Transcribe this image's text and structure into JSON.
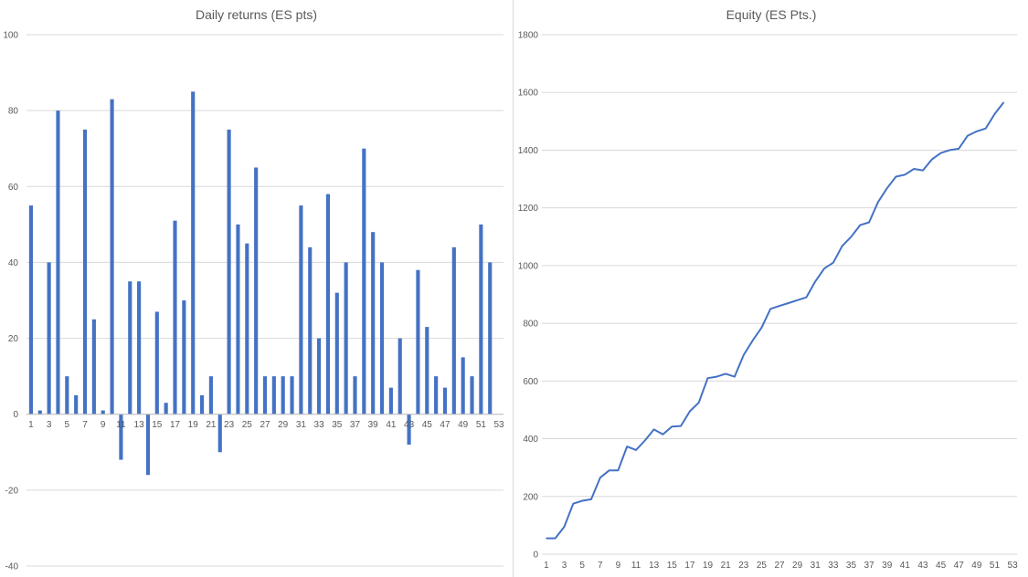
{
  "chart_data": [
    {
      "type": "bar",
      "title": "Daily returns (ES pts)",
      "xlabel": "",
      "ylabel": "",
      "ylim": [
        -40,
        100
      ],
      "yticks": [
        -40,
        -20,
        0,
        20,
        40,
        60,
        80,
        100
      ],
      "grid": true,
      "legend": "none",
      "color": "#4472c4",
      "x_tick_labels": [
        "1",
        "3",
        "5",
        "7",
        "9",
        "11",
        "13",
        "15",
        "17",
        "19",
        "21",
        "23",
        "25",
        "27",
        "29",
        "31",
        "33",
        "35",
        "37",
        "39",
        "41",
        "43",
        "45",
        "47",
        "49",
        "51",
        "53"
      ],
      "categories": [
        1,
        2,
        3,
        4,
        5,
        6,
        7,
        8,
        9,
        10,
        11,
        12,
        13,
        14,
        15,
        16,
        17,
        18,
        19,
        20,
        21,
        22,
        23,
        24,
        25,
        26,
        27,
        28,
        29,
        30,
        31,
        32,
        33,
        34,
        35,
        36,
        37,
        38,
        39,
        40,
        41,
        42,
        43,
        44,
        45,
        46,
        47,
        48,
        49,
        50,
        51,
        52,
        53
      ],
      "values": [
        55,
        1,
        40,
        80,
        10,
        5,
        75,
        25,
        1,
        83,
        -12,
        35,
        35,
        -16,
        27,
        3,
        51,
        30,
        85,
        5,
        10,
        -10,
        75,
        50,
        45,
        65,
        10,
        10,
        10,
        10,
        55,
        44,
        20,
        58,
        32,
        40,
        10,
        70,
        48,
        40,
        7,
        20,
        -8,
        38,
        23,
        10,
        7,
        44,
        15,
        10,
        50,
        40,
        null
      ]
    },
    {
      "type": "line",
      "title": "Equity (ES Pts.)",
      "xlabel": "",
      "ylabel": "",
      "ylim": [
        0,
        1800
      ],
      "yticks": [
        0,
        200,
        400,
        600,
        800,
        1000,
        1200,
        1400,
        1600,
        1800
      ],
      "grid": true,
      "legend": "none",
      "color": "#4472c4",
      "x_tick_labels": [
        "1",
        "3",
        "5",
        "7",
        "9",
        "11",
        "13",
        "15",
        "17",
        "19",
        "21",
        "23",
        "25",
        "27",
        "29",
        "31",
        "33",
        "35",
        "37",
        "39",
        "41",
        "43",
        "45",
        "47",
        "49",
        "51",
        "53"
      ],
      "categories": [
        1,
        2,
        3,
        4,
        5,
        6,
        7,
        8,
        9,
        10,
        11,
        12,
        13,
        14,
        15,
        16,
        17,
        18,
        19,
        20,
        21,
        22,
        23,
        24,
        25,
        26,
        27,
        28,
        29,
        30,
        31,
        32,
        33,
        34,
        35,
        36,
        37,
        38,
        39,
        40,
        41,
        42,
        43,
        44,
        45,
        46,
        47,
        48,
        49,
        50,
        51,
        52,
        53
      ],
      "values": [
        55,
        55,
        95,
        175,
        185,
        190,
        265,
        290,
        290,
        373,
        361,
        394,
        432,
        415,
        442,
        444,
        495,
        525,
        610,
        615,
        625,
        615,
        690,
        740,
        785,
        850,
        860,
        870,
        880,
        890,
        945,
        990,
        1010,
        1068,
        1100,
        1140,
        1150,
        1220,
        1268,
        1308,
        1315,
        1335,
        1330,
        1368,
        1390,
        1400,
        1405,
        1450,
        1465,
        1475,
        1525,
        1565,
        null
      ]
    }
  ]
}
